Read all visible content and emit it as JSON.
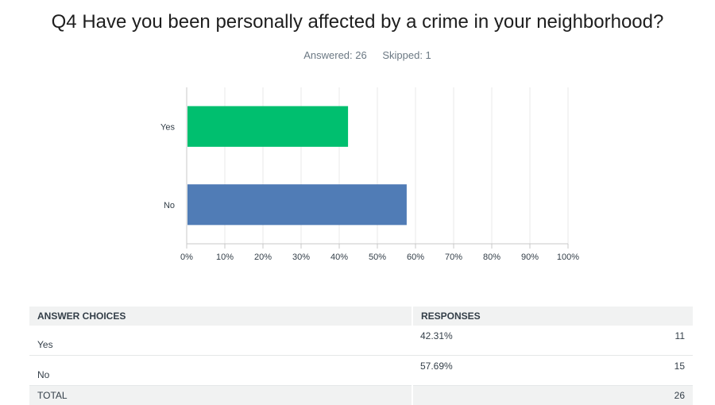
{
  "question": {
    "title": "Q4 Have you been personally affected by a crime in your neighborhood?",
    "answered": "Answered: 26",
    "skipped": "Skipped: 1"
  },
  "chart_data": {
    "type": "bar",
    "orientation": "horizontal",
    "title": "Q4 Have you been personally affected by a crime in your neighborhood?",
    "categories": [
      "Yes",
      "No"
    ],
    "values": [
      42.31,
      57.69
    ],
    "colors": [
      "#00bf6f",
      "#507cb6"
    ],
    "xlim": [
      0,
      100
    ],
    "xticks": [
      "0%",
      "10%",
      "20%",
      "30%",
      "40%",
      "50%",
      "60%",
      "70%",
      "80%",
      "90%",
      "100%"
    ],
    "xlabel": "",
    "ylabel": "",
    "grid": true,
    "legend": "none"
  },
  "table": {
    "headers": [
      "ANSWER CHOICES",
      "RESPONSES"
    ],
    "rows": [
      {
        "choice": "Yes",
        "percent": "42.31%",
        "count": "11"
      },
      {
        "choice": "No",
        "percent": "57.69%",
        "count": "15"
      }
    ],
    "total_label": "TOTAL",
    "total_count": "26"
  }
}
